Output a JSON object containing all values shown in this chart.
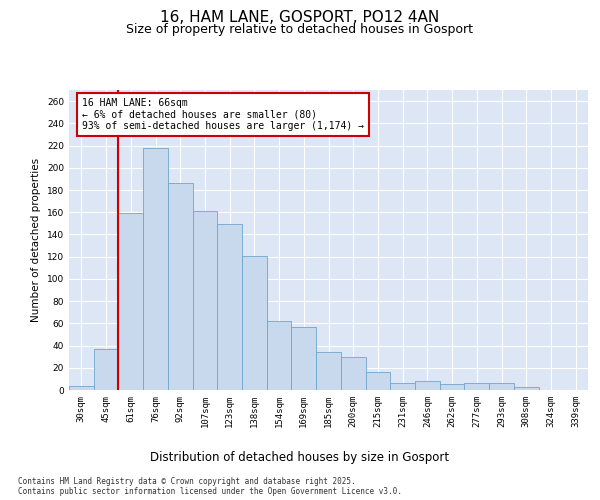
{
  "title1": "16, HAM LANE, GOSPORT, PO12 4AN",
  "title2": "Size of property relative to detached houses in Gosport",
  "xlabel": "Distribution of detached houses by size in Gosport",
  "ylabel": "Number of detached properties",
  "categories": [
    "30sqm",
    "45sqm",
    "61sqm",
    "76sqm",
    "92sqm",
    "107sqm",
    "123sqm",
    "138sqm",
    "154sqm",
    "169sqm",
    "185sqm",
    "200sqm",
    "215sqm",
    "231sqm",
    "246sqm",
    "262sqm",
    "277sqm",
    "293sqm",
    "308sqm",
    "324sqm",
    "339sqm"
  ],
  "values": [
    4,
    37,
    159,
    218,
    186,
    161,
    149,
    121,
    62,
    57,
    34,
    30,
    16,
    6,
    8,
    5,
    6,
    6,
    3,
    0,
    0
  ],
  "bar_color": "#c9d9ed",
  "bar_edge_color": "#6ea6cc",
  "vline_x": 1.5,
  "vline_color": "#cc0000",
  "annotation_text": "16 HAM LANE: 66sqm\n← 6% of detached houses are smaller (80)\n93% of semi-detached houses are larger (1,174) →",
  "annotation_box_color": "#ffffff",
  "annotation_box_edge": "#cc0000",
  "ylim": [
    0,
    270
  ],
  "yticks": [
    0,
    20,
    40,
    60,
    80,
    100,
    120,
    140,
    160,
    180,
    200,
    220,
    240,
    260
  ],
  "background_color": "#dce6f5",
  "footer": "Contains HM Land Registry data © Crown copyright and database right 2025.\nContains public sector information licensed under the Open Government Licence v3.0.",
  "title1_fontsize": 11,
  "title2_fontsize": 9,
  "xlabel_fontsize": 8.5,
  "ylabel_fontsize": 7.5,
  "tick_fontsize": 6.5,
  "annotation_fontsize": 7,
  "footer_fontsize": 5.5
}
